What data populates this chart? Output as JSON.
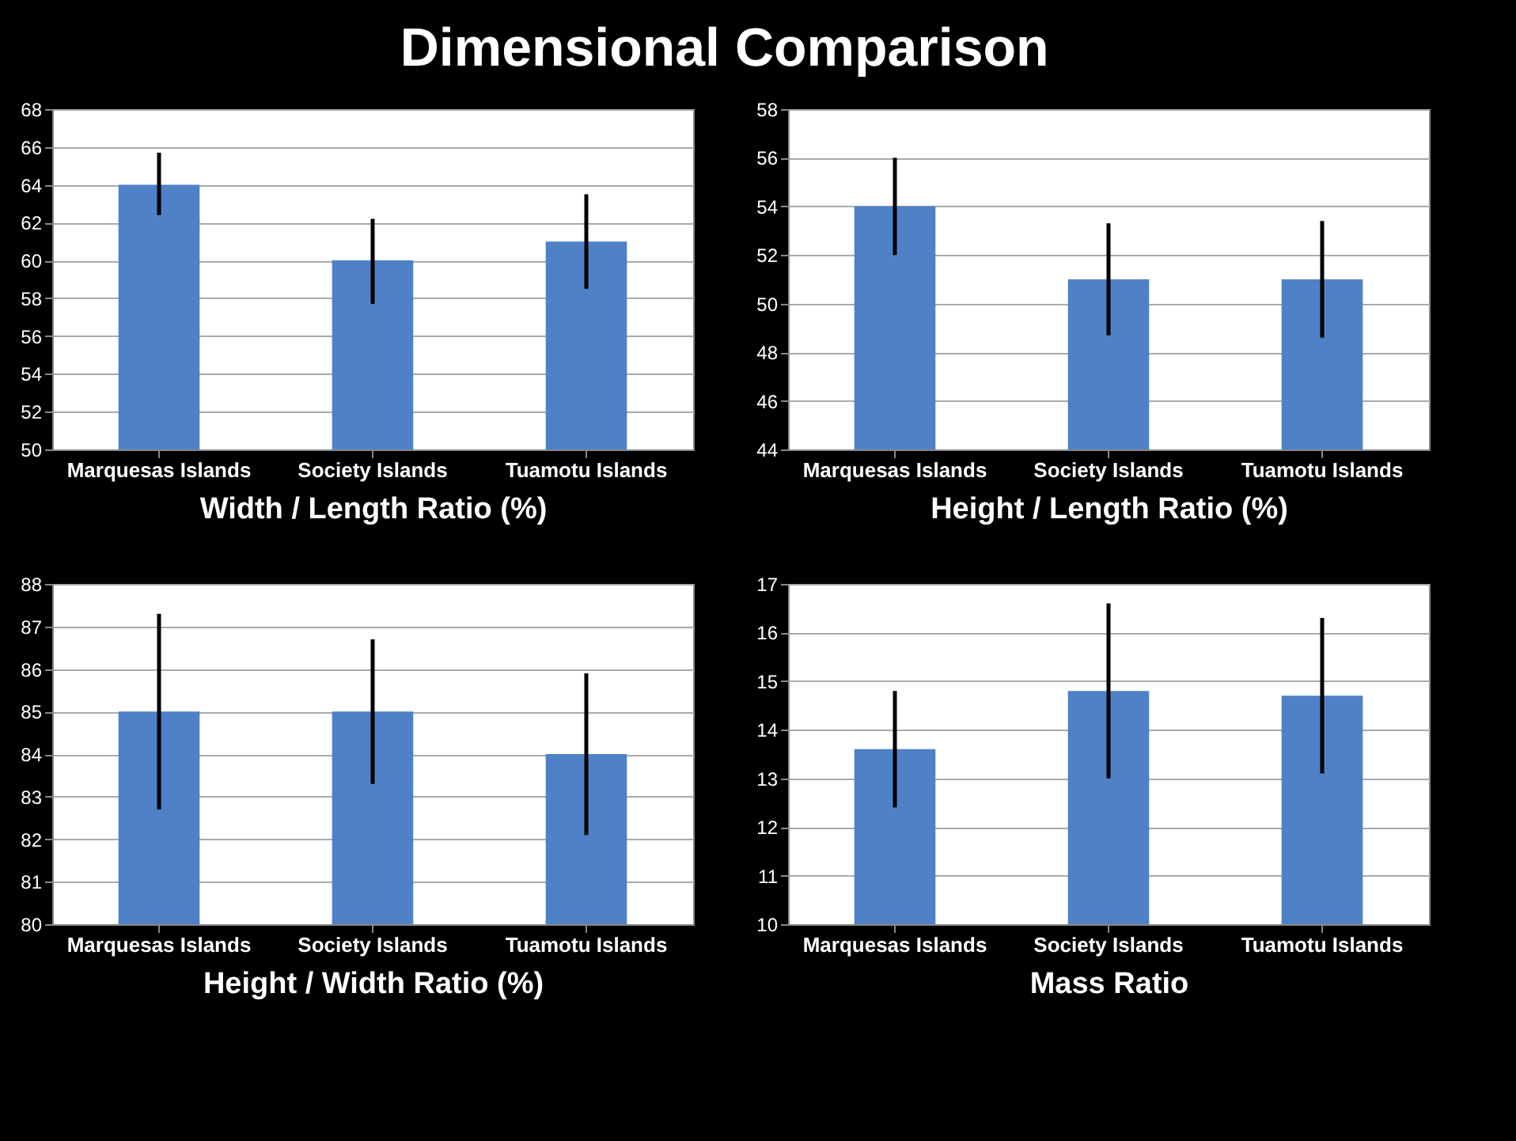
{
  "chart_data": [
    {
      "type": "bar",
      "title": "Dimensional Comparison",
      "xlabel": "Width / Length Ratio (%)",
      "categories": [
        "Marquesas  Islands",
        "Society Islands",
        "Tuamotu Islands"
      ],
      "values": [
        64,
        60,
        61
      ],
      "errors": [
        [
          62.4,
          65.7
        ],
        [
          57.7,
          62.2
        ],
        [
          58.5,
          63.5
        ]
      ],
      "color": "#4f81c7",
      "ylim": [
        50,
        68
      ],
      "yticks": [
        50,
        52,
        54,
        56,
        58,
        60,
        62,
        64,
        66,
        68
      ],
      "grid": "y"
    },
    {
      "type": "bar",
      "xlabel": "Height / Length Ratio (%)",
      "categories": [
        "Marquesas  Islands",
        "Society Islands",
        "Tuamotu Islands"
      ],
      "values": [
        54,
        51,
        51
      ],
      "errors": [
        [
          52,
          56
        ],
        [
          48.7,
          53.3
        ],
        [
          48.6,
          53.4
        ]
      ],
      "color": "#4f81c7",
      "ylim": [
        44,
        58
      ],
      "yticks": [
        44,
        46,
        48,
        50,
        52,
        54,
        56,
        58
      ],
      "grid": "y"
    },
    {
      "type": "bar",
      "xlabel": "Height / Width Ratio (%)",
      "categories": [
        "Marquesas  Islands",
        "Society Islands",
        "Tuamotu Islands"
      ],
      "values": [
        85,
        85,
        84
      ],
      "errors": [
        [
          82.7,
          87.3
        ],
        [
          83.3,
          86.7
        ],
        [
          82.1,
          85.9
        ]
      ],
      "color": "#4f81c7",
      "ylim": [
        80,
        88
      ],
      "yticks": [
        80,
        81,
        82,
        83,
        84,
        85,
        86,
        87,
        88
      ],
      "grid": "y"
    },
    {
      "type": "bar",
      "xlabel": "Mass Ratio",
      "categories": [
        "Marquesas  Islands",
        "Society Islands",
        "Tuamotu Islands"
      ],
      "values": [
        13.6,
        14.8,
        14.7
      ],
      "errors": [
        [
          12.4,
          14.8
        ],
        [
          13,
          16.6
        ],
        [
          13.1,
          16.3
        ]
      ],
      "color": "#4f81c7",
      "ylim": [
        10,
        17
      ],
      "yticks": [
        10,
        11,
        12,
        13,
        14,
        15,
        16,
        17
      ],
      "grid": "y"
    }
  ]
}
